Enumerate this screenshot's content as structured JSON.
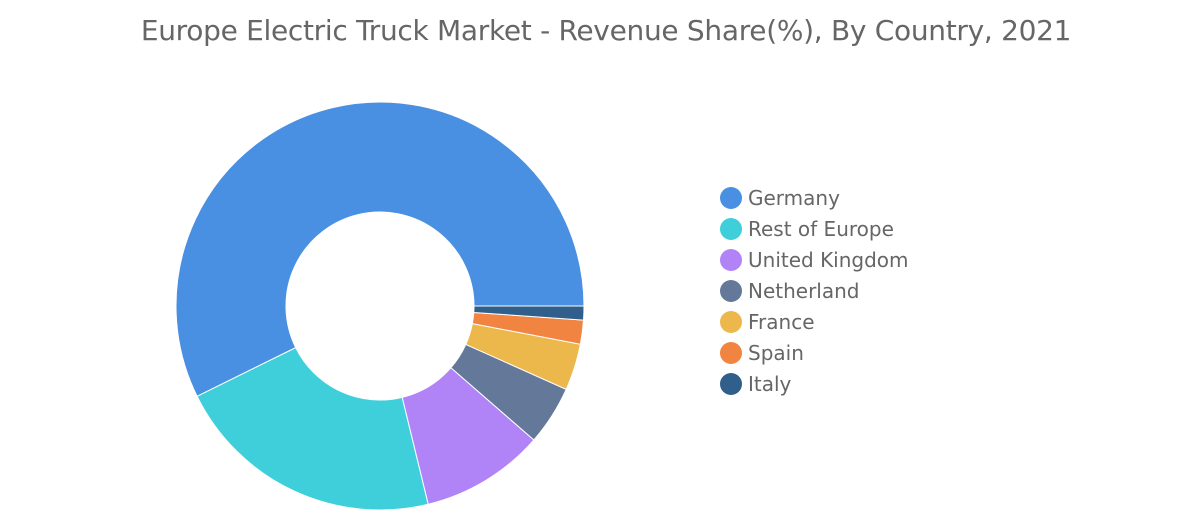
{
  "chart_data": {
    "type": "pie",
    "variant": "donut",
    "title": "Europe Electric Truck Market - Revenue Share(%), By Country, 2021",
    "categories": [
      "Germany",
      "Rest of Europe",
      "United Kingdom",
      "Netherland",
      "France",
      "Spain",
      "Italy"
    ],
    "values": [
      57.3,
      21.5,
      9.8,
      4.7,
      3.7,
      1.9,
      1.1
    ],
    "colors": [
      "#4a90e2",
      "#3ecfdb",
      "#b083f7",
      "#647899",
      "#ecb84c",
      "#f08440",
      "#2f5f8a"
    ],
    "legend_position": "right",
    "value_unit": "%"
  }
}
